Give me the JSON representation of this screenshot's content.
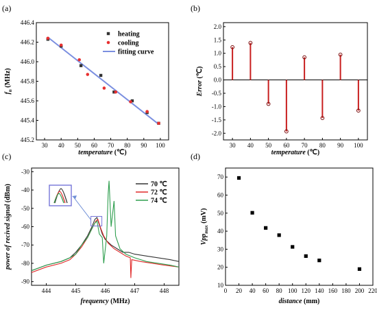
{
  "panels": {
    "a": "(a)",
    "b": "(b)",
    "c": "(c)",
    "d": "(d)"
  },
  "colors": {
    "heating": "#333333",
    "cooling": "#e83030",
    "fit": "#7b8fe0",
    "stem": "#c81e1e",
    "s70": "#333333",
    "s72": "#e02828",
    "s74": "#2e9e4e",
    "inset_box": "#7575d8",
    "arrow": "#6f8fd6",
    "d_marker": "#000000"
  },
  "chart_data": [
    {
      "id": "a",
      "type": "scatter",
      "xlabel": "temperature (℃)",
      "ylabel_main": "f",
      "ylabel_sub": "n",
      "ylabel_unit": " (MHz)",
      "xlim": [
        25,
        105
      ],
      "ylim": [
        445.2,
        446.4
      ],
      "xticks": [
        "30",
        "40",
        "50",
        "60",
        "70",
        "80",
        "90",
        "100"
      ],
      "yticks": [
        "445.2",
        "445.4",
        "445.6",
        "445.8",
        "446.0",
        "446.2",
        "446.4"
      ],
      "series": [
        {
          "name": "heating",
          "marker": "square",
          "x": [
            32,
            40,
            52,
            64,
            72,
            83,
            92,
            99
          ],
          "y": [
            446.23,
            446.16,
            445.96,
            445.86,
            445.69,
            445.6,
            445.48,
            445.37
          ]
        },
        {
          "name": "cooling",
          "marker": "circle",
          "x": [
            32,
            40,
            51,
            56,
            66,
            73,
            82,
            92,
            99
          ],
          "y": [
            446.24,
            446.17,
            446.02,
            445.87,
            445.73,
            445.69,
            445.59,
            445.49,
            445.37
          ]
        },
        {
          "name": "fitting curve",
          "marker": "line",
          "x": [
            32,
            99
          ],
          "y": [
            446.25,
            445.36
          ]
        }
      ],
      "legend": "top-right"
    },
    {
      "id": "b",
      "type": "bar",
      "xlabel": "temperature (℃)",
      "ylabel": "Error (℃)",
      "xlim": [
        25,
        105
      ],
      "ylim": [
        -2.25,
        2.15
      ],
      "xticks": [
        "30",
        "40",
        "50",
        "60",
        "70",
        "80",
        "90",
        "100"
      ],
      "yticks": [
        "-2.0",
        "-1.5",
        "-1.0",
        "-0.5",
        "0.0",
        "0.5",
        "1.0",
        "1.5",
        "2.0"
      ],
      "categories": [
        30,
        40,
        50,
        60,
        70,
        80,
        90,
        100
      ],
      "values": [
        1.23,
        1.39,
        -0.9,
        -1.93,
        0.85,
        -1.43,
        0.95,
        -1.15
      ]
    },
    {
      "id": "c",
      "type": "line",
      "xlabel": "frequency (MHz)",
      "ylabel": "power of recived signal (dBm)",
      "xlim": [
        443.5,
        448.5
      ],
      "ylim": [
        -92,
        -28
      ],
      "xticks": [
        "444",
        "445",
        "446",
        "447",
        "448"
      ],
      "yticks": [
        "-90",
        "-80",
        "-70",
        "-60",
        "-50",
        "-40",
        "-30"
      ],
      "legend": "top-right",
      "series": [
        {
          "name": "70 ℃",
          "x": [
            443.5,
            444.0,
            444.5,
            444.8,
            445.0,
            445.2,
            445.4,
            445.55,
            445.65,
            445.72,
            445.8,
            445.9,
            446.0,
            446.2,
            446.4,
            446.6,
            446.8,
            447.0,
            447.4,
            447.8,
            448.2,
            448.5
          ],
          "y": [
            -84,
            -81,
            -79,
            -77,
            -74,
            -70,
            -65,
            -60,
            -56,
            -55,
            -59,
            -64,
            -67,
            -70,
            -72,
            -74,
            -74,
            -75,
            -76,
            -77,
            -78,
            -79
          ]
        },
        {
          "name": "72 ℃",
          "x": [
            443.5,
            444.0,
            444.5,
            444.8,
            445.0,
            445.2,
            445.4,
            445.55,
            445.68,
            445.75,
            445.85,
            445.95,
            446.1,
            446.3,
            446.5,
            446.7,
            446.85,
            446.87,
            446.9,
            447.2,
            447.6,
            448.0,
            448.5
          ],
          "y": [
            -85,
            -82,
            -80,
            -78,
            -75,
            -71,
            -66,
            -61,
            -57,
            -56,
            -61,
            -65,
            -69,
            -72,
            -74,
            -76,
            -77,
            -88,
            -78,
            -79,
            -80,
            -81,
            -82
          ]
        },
        {
          "name": "74 ℃",
          "x": [
            443.5,
            444.0,
            444.5,
            444.8,
            445.0,
            445.2,
            445.4,
            445.55,
            445.65,
            445.72,
            445.8,
            445.9,
            445.95,
            446.05,
            446.1,
            446.13,
            446.2,
            446.3,
            446.35,
            446.5,
            446.7,
            447.0,
            447.4,
            447.8,
            448.2,
            448.5
          ],
          "y": [
            -84,
            -81,
            -79,
            -77,
            -75,
            -70,
            -66,
            -61,
            -58,
            -57,
            -64,
            -66,
            -80,
            -65,
            -42,
            -35,
            -60,
            -46,
            -65,
            -72,
            -75,
            -77,
            -79,
            -80,
            -81,
            -82
          ]
        }
      ]
    },
    {
      "id": "d",
      "type": "scatter",
      "xlabel": "distance (mm)",
      "ylabel_main": "Vpp",
      "ylabel_sub": "max",
      "ylabel_unit": " (mV)",
      "xlim": [
        0,
        220
      ],
      "ylim": [
        10,
        75
      ],
      "xticks": [
        "0",
        "20",
        "40",
        "60",
        "80",
        "100",
        "120",
        "140",
        "160",
        "180",
        "200",
        "220"
      ],
      "yticks": [
        "10",
        "20",
        "30",
        "40",
        "50",
        "60",
        "70"
      ],
      "x": [
        20,
        40,
        60,
        80,
        100,
        120,
        140,
        200
      ],
      "y": [
        69.5,
        50.2,
        41.8,
        37.8,
        31.3,
        26.2,
        23.8,
        19
      ]
    }
  ]
}
